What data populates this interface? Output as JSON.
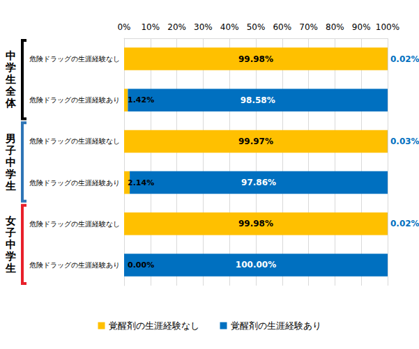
{
  "chart_data": {
    "type": "bar",
    "orientation": "horizontal",
    "stacked": true,
    "data_labels": true,
    "grid": true,
    "legend": "bottom",
    "categories": [
      "危険ドラッグの生涯経験なし",
      "危険ドラッグの生涯経験あり",
      "危険ドラッグの生涯経験なし",
      "危険ドラッグの生涯経験あり",
      "危険ドラッグの生涯経験なし",
      "危険ドラッグの生涯経験あり"
    ],
    "groups": [
      {
        "label": "中学生全体",
        "color": "#000000"
      },
      {
        "label": "男子中学生",
        "color": "#2E75B6"
      },
      {
        "label": "女子中学生",
        "color": "#E8202A"
      }
    ],
    "series": [
      {
        "name": "覚醒剤の生涯経験なし",
        "color": "#FFC000",
        "values": [
          99.98,
          1.42,
          99.97,
          2.14,
          99.98,
          0.0
        ],
        "value_labels": [
          "99.98%",
          "1.42%",
          "99.97%",
          "2.14%",
          "99.98%",
          "0.00%"
        ]
      },
      {
        "name": "覚醒剤の生涯経験あり",
        "color": "#0070C0",
        "values": [
          0.02,
          98.58,
          0.03,
          97.86,
          0.02,
          100.0
        ],
        "value_labels": [
          "0.02%",
          "98.58%",
          "0.03%",
          "97.86%",
          "0.02%",
          "100.00%"
        ]
      }
    ],
    "xlim": [
      0,
      100
    ],
    "xticks": [
      {
        "value": 0,
        "label": "0%"
      },
      {
        "value": 10,
        "label": "10%"
      },
      {
        "value": 20,
        "label": "20%"
      },
      {
        "value": 30,
        "label": "30%"
      },
      {
        "value": 40,
        "label": "40%"
      },
      {
        "value": 50,
        "label": "50%"
      },
      {
        "value": 60,
        "label": "60%"
      },
      {
        "value": 70,
        "label": "70%"
      },
      {
        "value": 80,
        "label": "80%"
      },
      {
        "value": 90,
        "label": "90%"
      },
      {
        "value": 100,
        "label": "100%"
      }
    ]
  }
}
